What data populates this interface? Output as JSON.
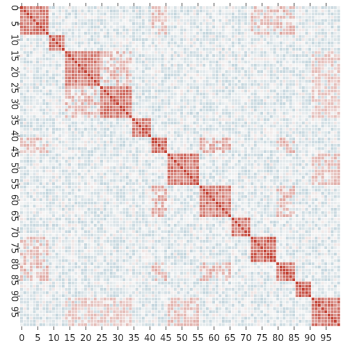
{
  "chart_data": {
    "type": "heatmap",
    "title": "",
    "xlabel": "",
    "ylabel": "",
    "n": 100,
    "x_tick_labels": [
      "0",
      "5",
      "10",
      "15",
      "20",
      "25",
      "30",
      "35",
      "40",
      "45",
      "50",
      "55",
      "60",
      "65",
      "70",
      "75",
      "80",
      "85",
      "90",
      "95"
    ],
    "y_tick_labels": [
      "0",
      "5",
      "10",
      "15",
      "20",
      "25",
      "30",
      "35",
      "40",
      "45",
      "50",
      "55",
      "60",
      "65",
      "70",
      "75",
      "80",
      "85",
      "90",
      "95"
    ],
    "value_range": [
      -1,
      1
    ],
    "colormap": {
      "negative": "#3a7f9c",
      "center": "#f4f4f4",
      "positive": "#c0392b"
    },
    "grid": true,
    "clusters": [
      {
        "start": 0,
        "end": 9,
        "strength": 0.8
      },
      {
        "start": 9,
        "end": 14,
        "strength": 0.95
      },
      {
        "start": 14,
        "end": 25,
        "strength": 0.8
      },
      {
        "start": 25,
        "end": 35,
        "strength": 0.8
      },
      {
        "start": 35,
        "end": 41,
        "strength": 0.9
      },
      {
        "start": 41,
        "end": 46,
        "strength": 0.95
      },
      {
        "start": 46,
        "end": 56,
        "strength": 0.85
      },
      {
        "start": 56,
        "end": 66,
        "strength": 0.8
      },
      {
        "start": 66,
        "end": 72,
        "strength": 0.85
      },
      {
        "start": 72,
        "end": 80,
        "strength": 0.95
      },
      {
        "start": 80,
        "end": 86,
        "strength": 0.9
      },
      {
        "start": 86,
        "end": 91,
        "strength": 0.95
      },
      {
        "start": 91,
        "end": 100,
        "strength": 0.85
      }
    ],
    "offdiagonal_links": [
      {
        "a": [
          0,
          9
        ],
        "b": [
          72,
          86
        ],
        "strength": 0.35
      },
      {
        "a": [
          0,
          9
        ],
        "b": [
          41,
          46
        ],
        "strength": 0.3
      },
      {
        "a": [
          14,
          25
        ],
        "b": [
          25,
          35
        ],
        "strength": 0.35
      },
      {
        "a": [
          41,
          46
        ],
        "b": [
          56,
          66
        ],
        "strength": 0.4
      },
      {
        "a": [
          41,
          46
        ],
        "b": [
          80,
          86
        ],
        "strength": 0.35
      },
      {
        "a": [
          56,
          66
        ],
        "b": [
          80,
          86
        ],
        "strength": 0.35
      },
      {
        "a": [
          72,
          80
        ],
        "b": [
          0,
          9
        ],
        "strength": 0.3
      },
      {
        "a": [
          14,
          25
        ],
        "b": [
          91,
          100
        ],
        "strength": 0.25
      },
      {
        "a": [
          25,
          35
        ],
        "b": [
          91,
          100
        ],
        "strength": 0.25
      },
      {
        "a": [
          46,
          56
        ],
        "b": [
          91,
          100
        ],
        "strength": 0.3
      }
    ],
    "background_mean": -0.15
  }
}
